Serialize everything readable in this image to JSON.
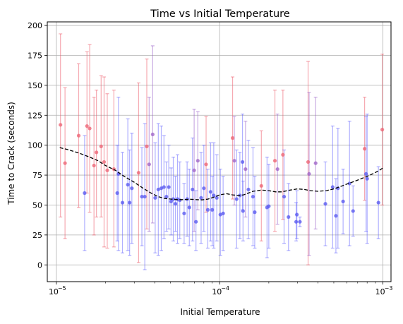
{
  "chart_data": {
    "type": "scatter",
    "title": "Time vs Initial Temperature",
    "xlabel": "Initial Temperature",
    "ylabel": "Time to Crack (seconds)",
    "xscale": "log",
    "xlim": [
      8.8e-06,
      0.00112
    ],
    "ylim": [
      -14,
      203
    ],
    "grid": true,
    "x_ticks": [
      {
        "value": 1e-05,
        "base": "10",
        "exp": "−5"
      },
      {
        "value": 0.0001,
        "base": "10",
        "exp": "−4"
      },
      {
        "value": 0.001,
        "base": "10",
        "exp": "−3"
      }
    ],
    "y_ticks": [
      0,
      25,
      50,
      75,
      100,
      125,
      150,
      175,
      200
    ],
    "y_tick_labels": [
      "0",
      "25",
      "50",
      "75",
      "100",
      "125",
      "150",
      "175",
      "200"
    ],
    "colors": {
      "blue": "#4444ff",
      "red": "#ee5566",
      "trend": "#000000"
    },
    "points": [
      {
        "x": 1.06e-05,
        "y": 117,
        "lo": 40,
        "hi": 193,
        "c": "red"
      },
      {
        "x": 1.13e-05,
        "y": 85,
        "lo": 22,
        "hi": 148,
        "c": "red"
      },
      {
        "x": 1.37e-05,
        "y": 108,
        "lo": 48,
        "hi": 168,
        "c": "red"
      },
      {
        "x": 1.49e-05,
        "y": 60,
        "lo": 12,
        "hi": 108,
        "c": "blue"
      },
      {
        "x": 1.54e-05,
        "y": 116,
        "lo": 60,
        "hi": 178,
        "c": "red"
      },
      {
        "x": 1.6e-05,
        "y": 114,
        "lo": 44,
        "hi": 184,
        "c": "red"
      },
      {
        "x": 1.7e-05,
        "y": 83,
        "lo": 25,
        "hi": 140,
        "c": "red"
      },
      {
        "x": 1.76e-05,
        "y": 94,
        "lo": 40,
        "hi": 146,
        "c": "red"
      },
      {
        "x": 1.88e-05,
        "y": 99,
        "lo": 40,
        "hi": 158,
        "c": "red"
      },
      {
        "x": 1.96e-05,
        "y": 86,
        "lo": 15,
        "hi": 157,
        "c": "red"
      },
      {
        "x": 2.05e-05,
        "y": 79,
        "lo": 14,
        "hi": 143,
        "c": "red"
      },
      {
        "x": 2.25e-05,
        "y": 80,
        "lo": 15,
        "hi": 146,
        "c": "red"
      },
      {
        "x": 2.36e-05,
        "y": 60,
        "lo": 20,
        "hi": 100,
        "c": "blue"
      },
      {
        "x": 2.4e-05,
        "y": 76,
        "lo": 12,
        "hi": 140,
        "c": "blue"
      },
      {
        "x": 2.54e-05,
        "y": 52,
        "lo": 10,
        "hi": 94,
        "c": "blue"
      },
      {
        "x": 2.74e-05,
        "y": 67,
        "lo": 12,
        "hi": 122,
        "c": "blue"
      },
      {
        "x": 2.81e-05,
        "y": 52,
        "lo": 8,
        "hi": 96,
        "c": "blue"
      },
      {
        "x": 2.9e-05,
        "y": 64,
        "lo": 18,
        "hi": 110,
        "c": "blue"
      },
      {
        "x": 3.19e-05,
        "y": 77,
        "lo": 2,
        "hi": 152,
        "c": "red"
      },
      {
        "x": 3.34e-05,
        "y": 57,
        "lo": 16,
        "hi": 98,
        "c": "blue"
      },
      {
        "x": 3.48e-05,
        "y": 57,
        "lo": -4,
        "hi": 118,
        "c": "blue"
      },
      {
        "x": 3.58e-05,
        "y": 99,
        "lo": 30,
        "hi": 172,
        "c": "red"
      },
      {
        "x": 3.7e-05,
        "y": 84,
        "lo": 28,
        "hi": 140,
        "c": "purple"
      },
      {
        "x": 3.89e-05,
        "y": 109,
        "lo": 35,
        "hi": 183,
        "c": "purple"
      },
      {
        "x": 4.03e-05,
        "y": 56,
        "lo": 10,
        "hi": 102,
        "c": "blue"
      },
      {
        "x": 4.21e-05,
        "y": 63,
        "lo": 8,
        "hi": 118,
        "c": "blue"
      },
      {
        "x": 4.39e-05,
        "y": 64,
        "lo": 12,
        "hi": 116,
        "c": "blue"
      },
      {
        "x": 4.56e-05,
        "y": 65,
        "lo": 22,
        "hi": 108,
        "c": "blue"
      },
      {
        "x": 4.72e-05,
        "y": 57,
        "lo": 28,
        "hi": 86,
        "c": "blue"
      },
      {
        "x": 4.88e-05,
        "y": 65,
        "lo": 30,
        "hi": 100,
        "c": "blue"
      },
      {
        "x": 5.04e-05,
        "y": 53,
        "lo": 25,
        "hi": 81,
        "c": "blue"
      },
      {
        "x": 5.2e-05,
        "y": 55,
        "lo": 20,
        "hi": 90,
        "c": "blue"
      },
      {
        "x": 5.36e-05,
        "y": 51,
        "lo": 28,
        "hi": 74,
        "c": "blue"
      },
      {
        "x": 5.52e-05,
        "y": 55,
        "lo": 18,
        "hi": 92,
        "c": "blue"
      },
      {
        "x": 5.7e-05,
        "y": 54,
        "lo": 22,
        "hi": 86,
        "c": "blue"
      },
      {
        "x": 6.06e-05,
        "y": 43,
        "lo": 18,
        "hi": 68,
        "c": "blue"
      },
      {
        "x": 6.32e-05,
        "y": 55,
        "lo": 24,
        "hi": 86,
        "c": "blue"
      },
      {
        "x": 6.52e-05,
        "y": 48,
        "lo": 16,
        "hi": 80,
        "c": "blue"
      },
      {
        "x": 6.82e-05,
        "y": 63,
        "lo": 20,
        "hi": 106,
        "c": "blue"
      },
      {
        "x": 6.98e-05,
        "y": 79,
        "lo": 28,
        "hi": 130,
        "c": "purple"
      },
      {
        "x": 7.16e-05,
        "y": 36,
        "lo": 12,
        "hi": 62,
        "c": "blue"
      },
      {
        "x": 7.35e-05,
        "y": 87,
        "lo": 46,
        "hi": 128,
        "c": "purple"
      },
      {
        "x": 7.7e-05,
        "y": 56,
        "lo": 18,
        "hi": 94,
        "c": "blue"
      },
      {
        "x": 8e-05,
        "y": 64,
        "lo": 28,
        "hi": 100,
        "c": "blue"
      },
      {
        "x": 8.26e-05,
        "y": 84,
        "lo": 44,
        "hi": 124,
        "c": "red"
      },
      {
        "x": 8.46e-05,
        "y": 46,
        "lo": 14,
        "hi": 80,
        "c": "blue"
      },
      {
        "x": 8.8e-05,
        "y": 61,
        "lo": 20,
        "hi": 102,
        "c": "blue"
      },
      {
        "x": 9e-05,
        "y": 46,
        "lo": 16,
        "hi": 74,
        "c": "blue"
      },
      {
        "x": 9.2e-05,
        "y": 58,
        "lo": 14,
        "hi": 102,
        "c": "blue"
      },
      {
        "x": 9.6e-05,
        "y": 56,
        "lo": 20,
        "hi": 92,
        "c": "blue"
      },
      {
        "x": 0.000101,
        "y": 42,
        "lo": 8,
        "hi": 80,
        "c": "blue"
      },
      {
        "x": 0.000105,
        "y": 43,
        "lo": 12,
        "hi": 74,
        "c": "blue"
      },
      {
        "x": 0.00012,
        "y": 106,
        "lo": 55,
        "hi": 157,
        "c": "red"
      },
      {
        "x": 0.000123,
        "y": 87,
        "lo": 50,
        "hi": 124,
        "c": "purple"
      },
      {
        "x": 0.000127,
        "y": 55,
        "lo": 14,
        "hi": 96,
        "c": "blue"
      },
      {
        "x": 0.000133,
        "y": 58,
        "lo": 22,
        "hi": 94,
        "c": "blue"
      },
      {
        "x": 0.000138,
        "y": 86,
        "lo": 46,
        "hi": 126,
        "c": "blue"
      },
      {
        "x": 0.000139,
        "y": 45,
        "lo": 20,
        "hi": 70,
        "c": "blue"
      },
      {
        "x": 0.000144,
        "y": 80,
        "lo": 40,
        "hi": 120,
        "c": "purple"
      },
      {
        "x": 0.00015,
        "y": 63,
        "lo": 22,
        "hi": 104,
        "c": "blue"
      },
      {
        "x": 0.00016,
        "y": 57,
        "lo": 16,
        "hi": 98,
        "c": "blue"
      },
      {
        "x": 0.000164,
        "y": 44,
        "lo": 14,
        "hi": 74,
        "c": "blue"
      },
      {
        "x": 0.00018,
        "y": 66,
        "lo": 20,
        "hi": 112,
        "c": "red"
      },
      {
        "x": 0.000195,
        "y": 48,
        "lo": 6,
        "hi": 90,
        "c": "blue"
      },
      {
        "x": 0.0002,
        "y": 49,
        "lo": 14,
        "hi": 84,
        "c": "blue"
      },
      {
        "x": 0.000218,
        "y": 87,
        "lo": 28,
        "hi": 146,
        "c": "red"
      },
      {
        "x": 0.000226,
        "y": 80,
        "lo": 34,
        "hi": 126,
        "c": "purple"
      },
      {
        "x": 0.000244,
        "y": 92,
        "lo": 38,
        "hi": 146,
        "c": "red"
      },
      {
        "x": 0.000248,
        "y": 57,
        "lo": 18,
        "hi": 96,
        "c": "blue"
      },
      {
        "x": 0.000264,
        "y": 40,
        "lo": 12,
        "hi": 68,
        "c": "blue"
      },
      {
        "x": 0.000294,
        "y": 36,
        "lo": 20,
        "hi": 52,
        "c": "blue"
      },
      {
        "x": 0.000297,
        "y": 42,
        "lo": 22,
        "hi": 62,
        "c": "blue"
      },
      {
        "x": 0.00031,
        "y": 36,
        "lo": 32,
        "hi": 40,
        "c": "blue"
      },
      {
        "x": 0.000348,
        "y": 86,
        "lo": 0,
        "hi": 170,
        "c": "red"
      },
      {
        "x": 0.000353,
        "y": 76,
        "lo": 8,
        "hi": 144,
        "c": "purple"
      },
      {
        "x": 0.000387,
        "y": 85,
        "lo": 30,
        "hi": 140,
        "c": "purple"
      },
      {
        "x": 0.000444,
        "y": 51,
        "lo": 16,
        "hi": 86,
        "c": "blue"
      },
      {
        "x": 0.000492,
        "y": 65,
        "lo": 14,
        "hi": 116,
        "c": "blue"
      },
      {
        "x": 0.000515,
        "y": 41,
        "lo": 10,
        "hi": 72,
        "c": "blue"
      },
      {
        "x": 0.00053,
        "y": 64,
        "lo": 14,
        "hi": 114,
        "c": "blue"
      },
      {
        "x": 0.00057,
        "y": 53,
        "lo": 26,
        "hi": 80,
        "c": "blue"
      },
      {
        "x": 0.000624,
        "y": 68,
        "lo": 16,
        "hi": 120,
        "c": "blue"
      },
      {
        "x": 0.000656,
        "y": 45,
        "lo": 24,
        "hi": 66,
        "c": "blue"
      },
      {
        "x": 0.000772,
        "y": 97,
        "lo": 54,
        "hi": 140,
        "c": "red"
      },
      {
        "x": 0.000788,
        "y": 76,
        "lo": 28,
        "hi": 124,
        "c": "blue"
      },
      {
        "x": 0.0008,
        "y": 72,
        "lo": 18,
        "hi": 126,
        "c": "blue"
      },
      {
        "x": 0.000938,
        "y": 52,
        "lo": 22,
        "hi": 82,
        "c": "blue"
      },
      {
        "x": 0.00099,
        "y": 113,
        "lo": 50,
        "hi": 176,
        "c": "red"
      }
    ],
    "trend": {
      "x": [
        1.05e-05,
        1.2e-05,
        1.4e-05,
        1.6e-05,
        1.8e-05,
        2e-05,
        2.3e-05,
        2.6e-05,
        3e-05,
        3.4e-05,
        3.8e-05,
        4.2e-05,
        4.6e-05,
        5e-05,
        5.5e-05,
        6e-05,
        6.6e-05,
        7.2e-05,
        7.8e-05,
        8.5e-05,
        9.2e-05,
        0.0001,
        0.00011,
        0.00012,
        0.00013,
        0.00014,
        0.00015,
        0.00016,
        0.00018,
        0.0002,
        0.00022,
        0.00024,
        0.00027,
        0.0003,
        0.00033,
        0.00036,
        0.0004,
        0.00045,
        0.0005,
        0.00055,
        0.0006,
        0.00066,
        0.00072,
        0.0008,
        0.00088,
        0.00095,
        0.001
      ],
      "y": [
        98,
        96,
        93,
        90,
        87,
        83,
        79,
        74,
        69,
        64,
        60,
        57,
        55.5,
        55,
        54.5,
        54.5,
        54.8,
        54.5,
        54.3,
        55,
        56.5,
        58.5,
        59.5,
        58.5,
        58,
        58.5,
        60,
        61.5,
        62.5,
        62,
        61,
        61,
        62.5,
        63.5,
        63,
        62,
        61.5,
        62,
        63.5,
        65.5,
        67.5,
        69.5,
        71.5,
        74,
        76.5,
        79,
        81
      ]
    }
  }
}
